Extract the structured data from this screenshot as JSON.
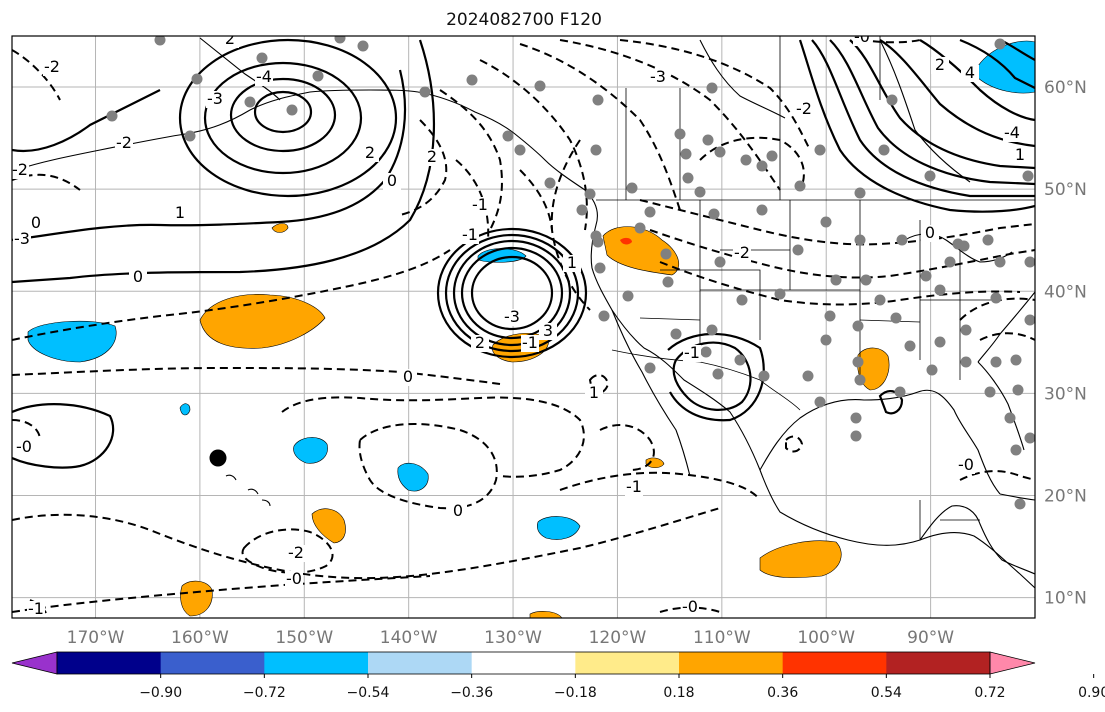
{
  "title": "2024082700 F120",
  "map": {
    "projection": "lat-lon",
    "lon_range": [
      -178,
      -80
    ],
    "lat_range": [
      8,
      65
    ],
    "gridlines": true,
    "lat_labels": [
      "60°N",
      "50°N",
      "40°N",
      "30°N",
      "20°N",
      "10°N"
    ],
    "lon_labels": [
      "170°W",
      "160°W",
      "150°W",
      "140°W",
      "130°W",
      "120°W",
      "110°W",
      "100°W",
      "90°W"
    ],
    "contour_labels": [
      "-2",
      "-2",
      "2",
      "-2",
      "-4",
      "-3",
      "2",
      "-1",
      "0",
      "1",
      "2",
      "-1",
      "0",
      "-3",
      "-1",
      "-3",
      "2",
      "1",
      "-2",
      "0",
      "0",
      "1",
      "-1",
      "-1",
      "0",
      "-2",
      "-0",
      "3",
      "-3",
      "-2",
      "2",
      "4",
      "-4",
      "-0",
      "1",
      "-0",
      "-1",
      "0",
      "-0",
      "-0"
    ],
    "dot_color": "#808080",
    "highlight_dot_color": "#000000",
    "coastline_color": "#000000"
  },
  "colorbar": {
    "tick_labels": [
      "−0.90",
      "−0.72",
      "−0.54",
      "−0.36",
      "−0.18",
      "0.18",
      "0.36",
      "0.54",
      "0.72",
      "0.90"
    ],
    "colors": [
      "#9932cc",
      "#00008b",
      "#3a5fcd",
      "#00bfff",
      "#add8f5",
      "#ffffff",
      "#ffeb8a",
      "#ffa500",
      "#ff3300",
      "#b22222",
      "#ff88aa"
    ],
    "extend": "both"
  },
  "shading_colors": {
    "neg_light": "#00bfff",
    "pos": "#ffa500",
    "pos_strong": "#ff3300"
  }
}
